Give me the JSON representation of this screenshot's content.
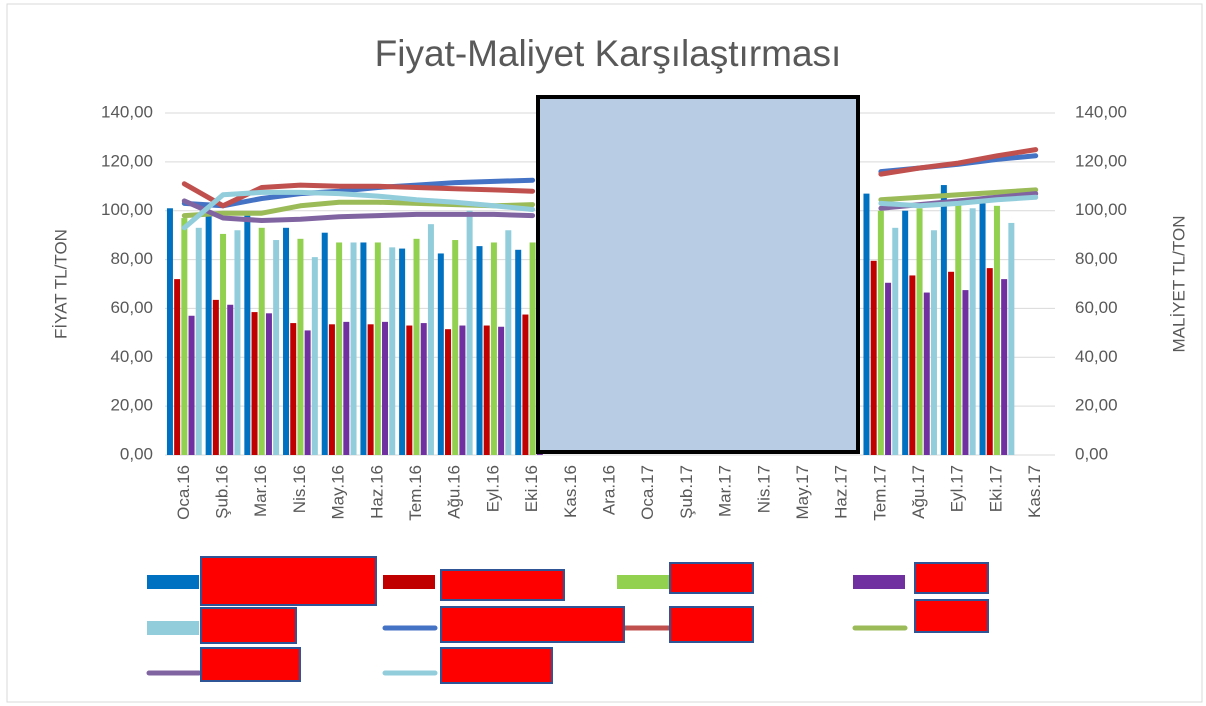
{
  "chart_data": {
    "type": "bar-line",
    "title": "Fiyat-Maliyet Karşılaştırması",
    "y_label": "FİYAT TL/TON",
    "y2_label": "MALİYET TL/TON",
    "categories": [
      "Oca.16",
      "Şub.16",
      "Mar.16",
      "Nis.16",
      "May.16",
      "Haz.16",
      "Tem.16",
      "Ağu.16",
      "Eyl.16",
      "Eki.16",
      "Kas.16",
      "Ara.16",
      "Oca.17",
      "Şub.17",
      "Mar.17",
      "Nis.17",
      "May.17",
      "Haz.17",
      "Tem.17",
      "Ağu.17",
      "Eyl.17",
      "Eki.17",
      "Kas.17"
    ],
    "ylim": [
      0,
      140
    ],
    "yticks": [
      {
        "value": 0,
        "label": "0,00"
      },
      {
        "value": 20,
        "label": "20,00"
      },
      {
        "value": 40,
        "label": "40,00"
      },
      {
        "value": 60,
        "label": "60,00"
      },
      {
        "value": 80,
        "label": "80,00"
      },
      {
        "value": 100,
        "label": "100,00"
      },
      {
        "value": 120,
        "label": "120,00"
      },
      {
        "value": 140,
        "label": "140,00"
      }
    ],
    "y2lim": [
      0,
      140
    ],
    "y2ticks": [
      {
        "value": 0,
        "label": "0,00"
      },
      {
        "value": 20,
        "label": "20,00"
      },
      {
        "value": 40,
        "label": "40,00"
      },
      {
        "value": 60,
        "label": "60,00"
      },
      {
        "value": 80,
        "label": "80,00"
      },
      {
        "value": 100,
        "label": "100,00"
      },
      {
        "value": 120,
        "label": "120,00"
      },
      {
        "value": 140,
        "label": "140,00"
      }
    ],
    "grid": true,
    "series": [
      {
        "kind": "bar",
        "color": "#0070c0",
        "values": [
          101,
          98,
          98,
          93,
          91,
          87,
          84.5,
          82.5,
          85.5,
          84,
          null,
          null,
          null,
          null,
          null,
          null,
          null,
          null,
          107,
          100,
          110.5,
          103,
          null
        ]
      },
      {
        "kind": "bar",
        "color": "#c00000",
        "values": [
          72,
          63.5,
          58.5,
          54,
          53.5,
          53.5,
          53,
          51.5,
          53,
          57.5,
          null,
          null,
          null,
          null,
          null,
          null,
          null,
          null,
          79.5,
          73.5,
          75,
          76.5,
          null
        ]
      },
      {
        "kind": "bar",
        "color": "#92d050",
        "values": [
          97,
          90.5,
          93,
          88.5,
          87,
          87,
          88.5,
          88,
          87,
          87,
          null,
          null,
          null,
          null,
          null,
          null,
          null,
          null,
          100,
          101,
          103,
          102,
          null
        ]
      },
      {
        "kind": "bar",
        "color": "#7030a0",
        "values": [
          57,
          61.5,
          58,
          51,
          54.5,
          54.5,
          54,
          53,
          52.5,
          53.5,
          null,
          null,
          null,
          null,
          null,
          null,
          null,
          null,
          70.5,
          66.5,
          67.5,
          72,
          null
        ]
      },
      {
        "kind": "bar",
        "color": "#92cddc",
        "values": [
          93,
          92,
          88,
          81,
          87,
          85,
          94.5,
          100,
          92,
          null,
          null,
          null,
          null,
          null,
          null,
          null,
          null,
          null,
          93,
          92,
          101,
          95,
          null
        ]
      },
      {
        "kind": "line",
        "axis": "y2",
        "color": "#4472c4",
        "values": [
          103,
          102,
          105,
          107,
          108,
          109.5,
          110.5,
          111.5,
          112,
          112.5,
          null,
          null,
          null,
          null,
          null,
          null,
          null,
          null,
          116,
          117.5,
          119,
          121,
          122.5
        ]
      },
      {
        "kind": "line",
        "axis": "y2",
        "color": "#c0504d",
        "values": [
          111,
          102,
          109.5,
          110.5,
          110,
          110,
          109.5,
          109,
          108.5,
          108,
          null,
          null,
          null,
          null,
          null,
          null,
          null,
          null,
          115,
          117.5,
          119.5,
          122.5,
          125
        ]
      },
      {
        "kind": "line",
        "axis": "y2",
        "color": "#9bbb59",
        "values": [
          98,
          99,
          99,
          102,
          103.5,
          103.5,
          103,
          102.5,
          102,
          102.5,
          null,
          null,
          null,
          null,
          null,
          null,
          null,
          null,
          104.5,
          105.5,
          106.5,
          107.5,
          108.5
        ]
      },
      {
        "kind": "line",
        "axis": "y2",
        "color": "#8064a2",
        "values": [
          104,
          97,
          96,
          96.5,
          97.5,
          98,
          98.5,
          98.5,
          98.5,
          98,
          null,
          null,
          null,
          null,
          null,
          null,
          null,
          null,
          101,
          102.5,
          104,
          105.5,
          107
        ]
      },
      {
        "kind": "line",
        "axis": "y2",
        "color": "#92cddc",
        "values": [
          93,
          106.5,
          107.5,
          107.5,
          107,
          106,
          104.5,
          103.5,
          102,
          100.5,
          null,
          null,
          null,
          null,
          null,
          null,
          null,
          null,
          103,
          102,
          103,
          104.5,
          105.5
        ]
      }
    ]
  }
}
